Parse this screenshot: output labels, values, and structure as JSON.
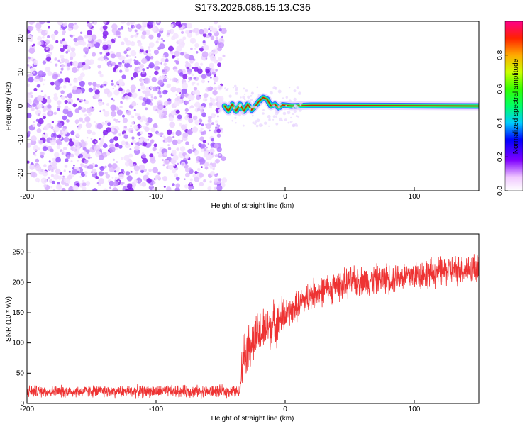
{
  "title": "S173.2026.086.15.13.C36",
  "spectrogram": {
    "type": "heatmap",
    "xlabel": "Height of straight line (km)",
    "ylabel": "Frequency (Hz)",
    "xlim": [
      -200,
      150
    ],
    "ylim": [
      -25,
      25
    ],
    "xticks": [
      -200,
      -100,
      0,
      100
    ],
    "xtick_labels": [
      "-200",
      "-100",
      "0",
      "100"
    ],
    "yticks": [
      -20,
      -10,
      0,
      10,
      20
    ],
    "ytick_labels": [
      "-20",
      "-10",
      "0",
      "10",
      "20"
    ],
    "noise_region_x": [
      -200,
      -47
    ],
    "signal_start_x": -47,
    "signal_track": [
      {
        "x": -47,
        "f": 0.0
      },
      {
        "x": -44,
        "f": -1.5
      },
      {
        "x": -41,
        "f": 0.5
      },
      {
        "x": -38,
        "f": -1.5
      },
      {
        "x": -35,
        "f": 0.5
      },
      {
        "x": -32,
        "f": -1.5
      },
      {
        "x": -29,
        "f": 0.5
      },
      {
        "x": -26,
        "f": -1.2
      },
      {
        "x": -23,
        "f": 0.0
      },
      {
        "x": -20,
        "f": 1.5
      },
      {
        "x": -17,
        "f": 2.5
      },
      {
        "x": -14,
        "f": 2.0
      },
      {
        "x": -11,
        "f": 0.0
      },
      {
        "x": -8,
        "f": 0.5
      },
      {
        "x": -5,
        "f": -0.5
      },
      {
        "x": -2,
        "f": 0.3
      },
      {
        "x": 5,
        "f": 0.0
      },
      {
        "x": 20,
        "f": 0.2
      },
      {
        "x": 150,
        "f": 0.0
      }
    ]
  },
  "colorbar": {
    "label": "Normalized spectral amplitude",
    "range": [
      0.0,
      1.0
    ],
    "ticks": [
      0.0,
      0.2,
      0.4,
      0.6,
      0.8
    ],
    "tick_labels": [
      "0.0",
      "0.2",
      "0.4",
      "0.6",
      "0.8"
    ]
  },
  "snr": {
    "type": "line",
    "color": "#ee3333",
    "xlabel": "Height of straight line (km)",
    "ylabel": "SNR (10 * v/v)",
    "xlim": [
      -200,
      150
    ],
    "ylim": [
      0,
      280
    ],
    "xticks": [
      -200,
      -100,
      0,
      100
    ],
    "xtick_labels": [
      "-200",
      "-100",
      "0",
      "100"
    ],
    "yticks": [
      0,
      50,
      100,
      150,
      200,
      250
    ],
    "ytick_labels": [
      "0",
      "50",
      "100",
      "150",
      "200",
      "250"
    ],
    "trend": [
      {
        "x": -200,
        "y": 20
      },
      {
        "x": -50,
        "y": 20
      },
      {
        "x": -35,
        "y": 20
      },
      {
        "x": -33,
        "y": 80
      },
      {
        "x": -20,
        "y": 115
      },
      {
        "x": 0,
        "y": 145
      },
      {
        "x": 20,
        "y": 180
      },
      {
        "x": 50,
        "y": 200
      },
      {
        "x": 100,
        "y": 212
      },
      {
        "x": 150,
        "y": 225
      }
    ]
  }
}
